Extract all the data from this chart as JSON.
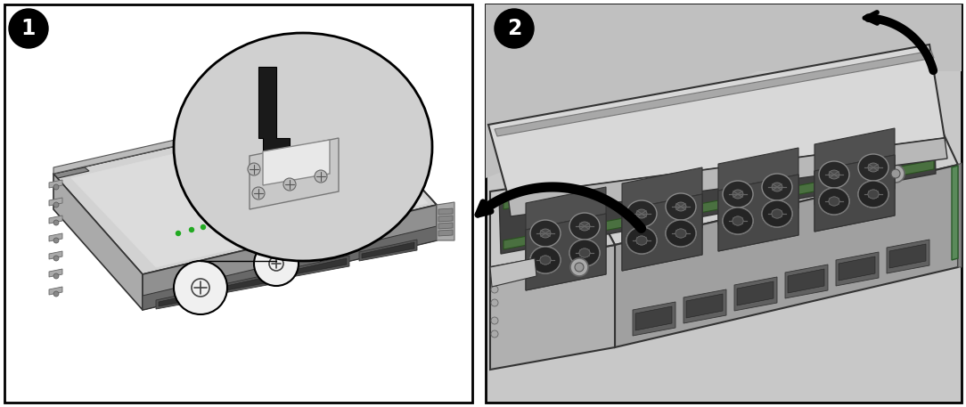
{
  "figure_width": 10.84,
  "figure_height": 4.57,
  "dpi": 100,
  "bg": "#ffffff",
  "panel2_bg": "#d0d0d0",
  "silver_light": "#d8d8d8",
  "silver_mid": "#b8b8b8",
  "silver_dark": "#888888",
  "silver_vdark": "#555555",
  "edge_color": "#333333",
  "fan_dark": "#3a3a3a",
  "fan_ring": "#888888",
  "green1": "#4a7c4a",
  "green2": "#5a9a5a",
  "black_arrow": "#111111",
  "white": "#ffffff"
}
